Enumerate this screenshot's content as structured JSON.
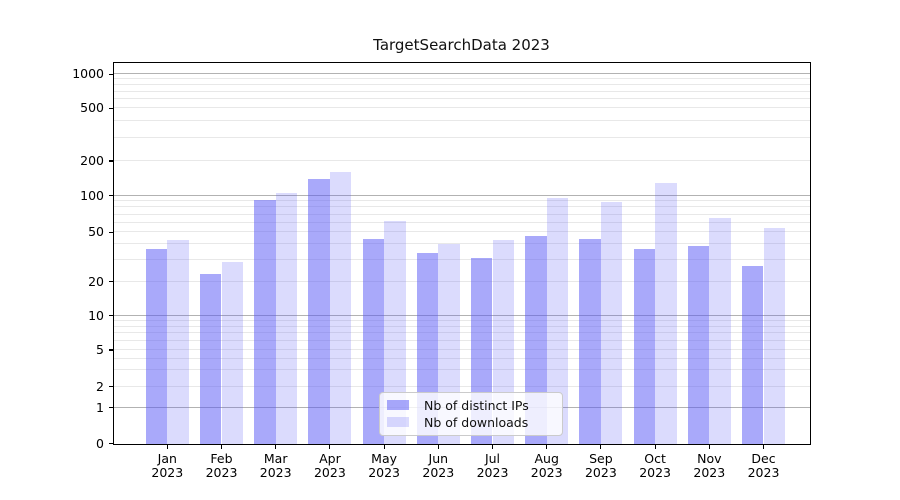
{
  "chart_data": {
    "type": "bar",
    "title": "TargetSearchData 2023",
    "categories": [
      "Jan 2023",
      "Feb 2023",
      "Mar 2023",
      "Apr 2023",
      "May 2023",
      "Jun 2023",
      "Jul 2023",
      "Aug 2023",
      "Sep 2023",
      "Oct 2023",
      "Nov 2023",
      "Dec 2023"
    ],
    "series": [
      {
        "name": "Nb of distinct IPs",
        "color": "rgba(84,84,245,0.5)",
        "values": [
          37,
          23,
          92,
          140,
          44,
          34,
          31,
          47,
          44,
          37,
          39,
          27
        ]
      },
      {
        "name": "Nb of downloads",
        "color": "rgba(84,84,245,0.21)",
        "values": [
          43,
          29,
          105,
          160,
          62,
          40,
          43,
          95,
          88,
          130,
          65,
          54
        ]
      }
    ],
    "xlabel": "",
    "ylabel": "",
    "yscale": "symlog",
    "ylim": [
      0,
      1300
    ],
    "yticks": [
      0,
      1,
      2,
      5,
      10,
      20,
      50,
      100,
      200,
      500,
      1000
    ],
    "grid": "horizontal, major gridlines at powers of 10, minor gridlines at 2-9 per decade",
    "legend_position": "lower center"
  }
}
